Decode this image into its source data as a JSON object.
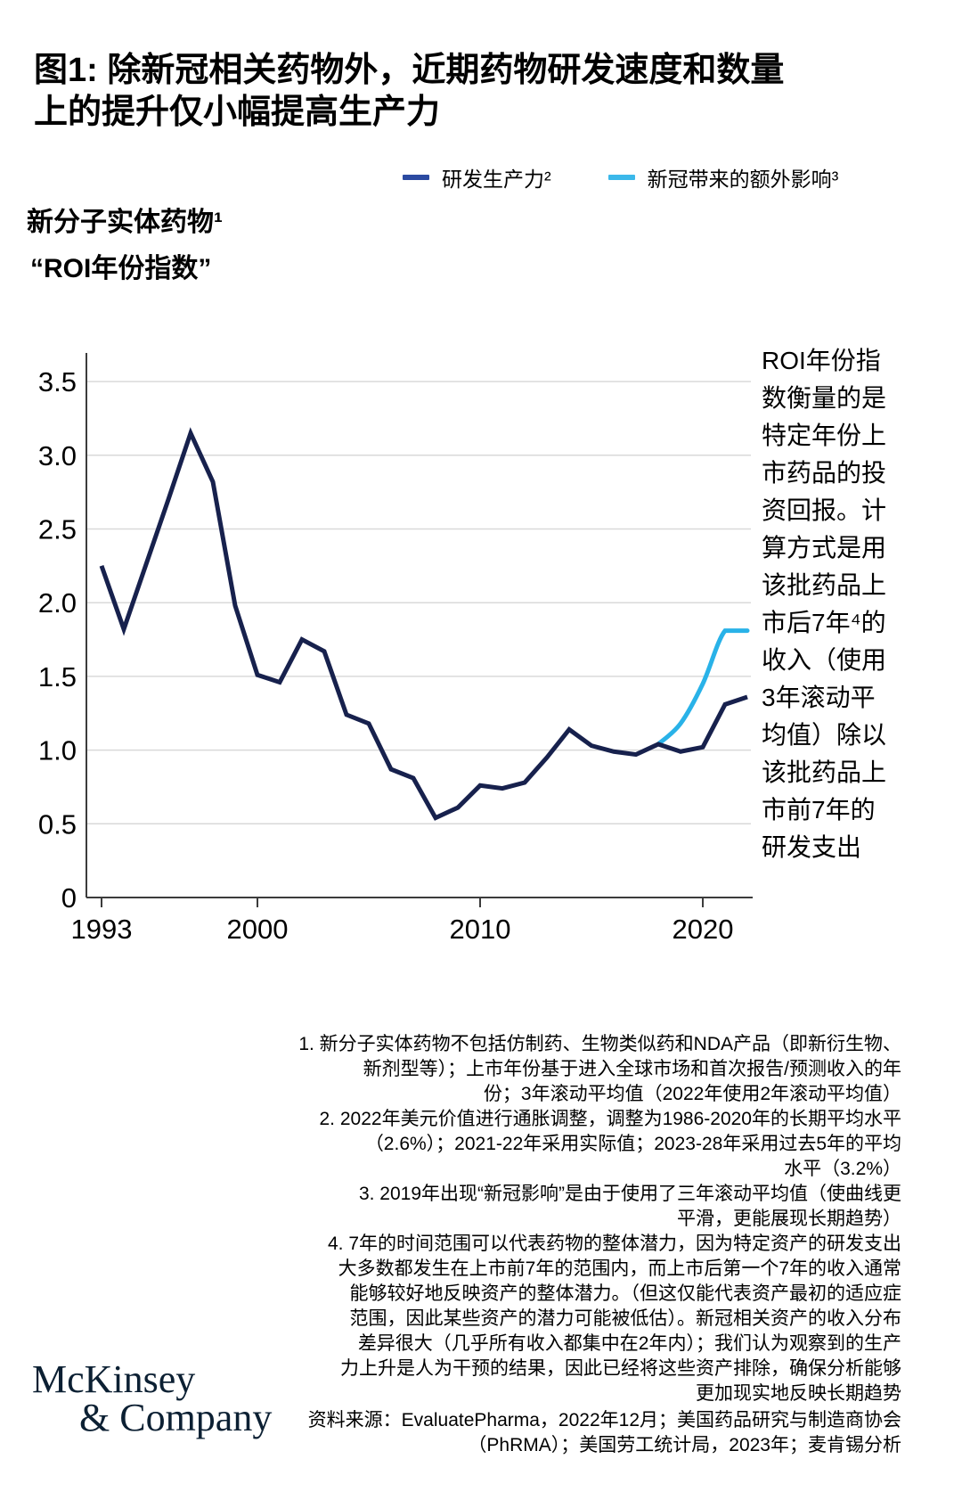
{
  "header": {
    "title": "图1: 除新冠相关药物外，近期药物研发速度和数量\n上的提升仅小幅提高生产力"
  },
  "chart_data": {
    "type": "line",
    "title": "新分子实体药物¹",
    "subtitle": "“ROI年份指数”",
    "xlabel": "",
    "ylabel": "ROI年份指数",
    "x": [
      1993,
      1994,
      1995,
      1996,
      1997,
      1998,
      1999,
      2000,
      2001,
      2002,
      2003,
      2004,
      2005,
      2006,
      2007,
      2008,
      2009,
      2010,
      2011,
      2012,
      2013,
      2014,
      2015,
      2016,
      2017,
      2018,
      2019,
      2020,
      2021,
      2022
    ],
    "series": [
      {
        "name": "研发生产力²",
        "color": "#17214d",
        "legend_color": "#2b4aa1",
        "values": [
          2.25,
          1.82,
          2.26,
          2.7,
          3.15,
          2.82,
          1.98,
          1.51,
          1.46,
          1.75,
          1.67,
          1.24,
          1.18,
          0.87,
          0.81,
          0.54,
          0.61,
          0.76,
          0.74,
          0.78,
          0.95,
          1.14,
          1.03,
          0.99,
          0.97,
          1.04,
          0.99,
          1.02,
          1.31,
          1.36
        ]
      },
      {
        "name": "新冠带来的额外影响³",
        "color": "#29b2e8",
        "legend_color": "#3bb8ea",
        "smooth": true,
        "x": [
          2018,
          2019,
          2020,
          2021,
          2022
        ],
        "values": [
          1.04,
          1.18,
          1.45,
          1.81,
          1.81
        ]
      }
    ],
    "xticks": [
      1993,
      2000,
      2010,
      2020
    ],
    "yticks": [
      0,
      0.5,
      1.0,
      1.5,
      2.0,
      2.5,
      3.0,
      3.5
    ],
    "xlim": [
      1993,
      2022
    ],
    "ylim": [
      0,
      3.7
    ],
    "grid": true,
    "legend_position": "top"
  },
  "annotation": {
    "text": "ROI年份指\n数衡量的是\n特定年份上\n市药品的投\n资回报。计\n算方式是用\n该批药品上\n市后7年⁴的\n收入（使用\n3年滚动平\n均值）除以\n该批药品上\n市前7年的\n研发支出"
  },
  "footnotes": {
    "f1": "1.  新分子实体药物不包括仿制药、生物类似药和NDA产品（即新衍生物、\n新剂型等）；上市年份基于进入全球市场和首次报告/预测收入的年\n份；3年滚动平均值（2022年使用2年滚动平均值）",
    "f2": "2.  2022年美元价值进行通胀调整，调整为1986-2020年的长期平均水平\n（2.6%）；2021-22年采用实际值；2023-28年采用过去5年的平均\n水平（3.2%）",
    "f3": "3.  2019年出现“新冠影响”是由于使用了三年滚动平均值（使曲线更\n平滑，更能展现长期趋势）",
    "f4": "4.  7年的时间范围可以代表药物的整体潜力，因为特定资产的研发支出\n大多数都发生在上市前7年的范围内，而上市后第一个7年的收入通常\n能够较好地反映资产的整体潜力。（但这仅能代表资产最初的适应症\n范围，因此某些资产的潜力可能被低估）。新冠相关资产的收入分布\n差异很大（几乎所有收入都集中在2年内）；我们认为观察到的生产\n力上升是人为干预的结果，因此已经将这些资产排除，确保分析能够\n更加现实地反映长期趋势"
  },
  "source": "资料来源：EvaluatePharma，2022年12月；美国药品研究与制造商协会\n（PhRMA）；美国劳工统计局，2023年；麦肯锡分析",
  "logo": {
    "line1": "McKinsey",
    "line2": "& Company"
  }
}
